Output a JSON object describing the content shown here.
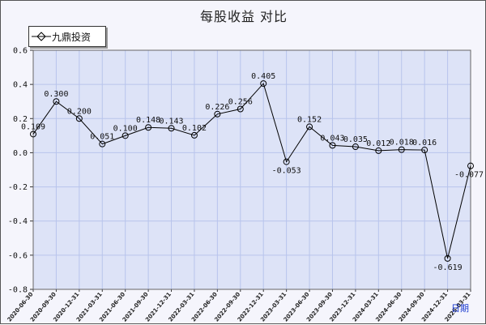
{
  "chart_data": {
    "type": "line",
    "title": "每股收益  对比",
    "xlabel": "日期",
    "ylabel": "",
    "ylim": [
      -0.8,
      0.6
    ],
    "yticks": [
      "0.6",
      "0.4",
      "0.2",
      "0.0",
      "-0.2",
      "-0.4",
      "-0.6",
      "-0.8"
    ],
    "grid": true,
    "legend": "top-left",
    "categories": [
      "2020-06-30",
      "2020-09-30",
      "2020-12-31",
      "2021-03-31",
      "2021-06-30",
      "2021-09-30",
      "2021-12-31",
      "2022-03-31",
      "2022-06-30",
      "2022-09-30",
      "2022-12-31",
      "2023-03-31",
      "2023-06-30",
      "2023-09-30",
      "2023-12-31",
      "2024-03-31",
      "2024-06-30",
      "2024-09-30",
      "2024-12-31",
      "2025-03-31"
    ],
    "series": [
      {
        "name": "九鼎投资",
        "values": [
          0.109,
          0.3,
          0.2,
          0.051,
          0.1,
          0.148,
          0.143,
          0.102,
          0.226,
          0.256,
          0.405,
          -0.053,
          0.152,
          0.043,
          0.035,
          0.012,
          0.018,
          0.016,
          -0.619,
          -0.077
        ],
        "labels": [
          "0.109",
          "0.300",
          "0.200",
          "0.051",
          "0.100",
          "0.148",
          "0.143",
          "0.102",
          "0.226",
          "0.256",
          "0.405",
          "-0.053",
          "0.152",
          "0.043",
          "0.035",
          "0.012",
          "0.018",
          "0.016",
          "-0.619",
          "-0.077"
        ],
        "color": "#000000"
      }
    ],
    "colors": {
      "plot_bg": "#dde3f7",
      "grid": "#b8c4ec",
      "line": "#000000",
      "axis_label": "#1a3ad0"
    }
  }
}
